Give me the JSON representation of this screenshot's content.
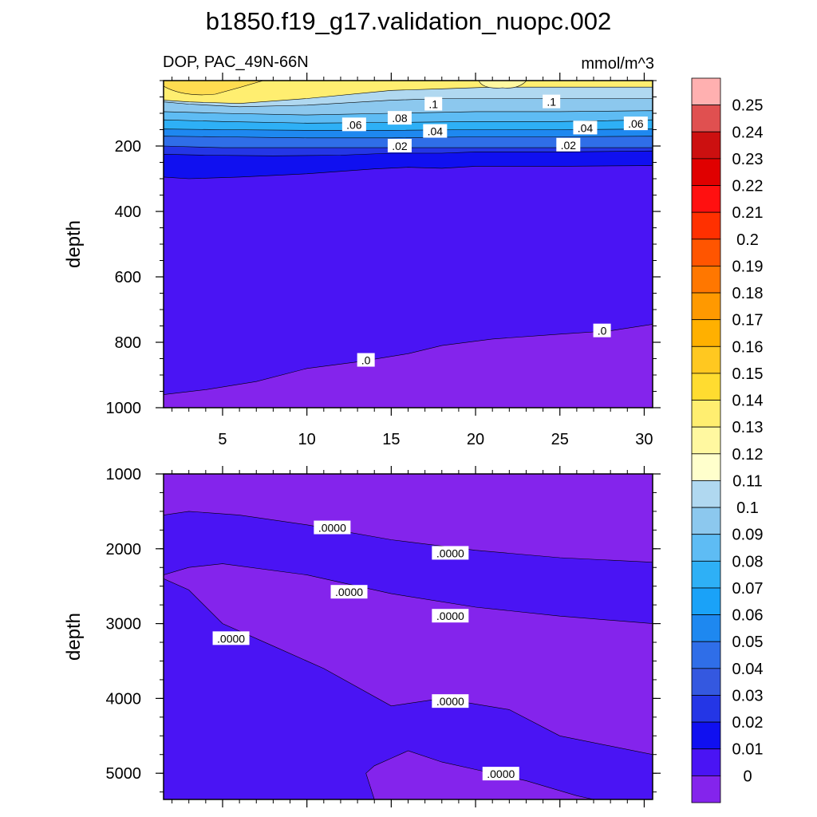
{
  "chart_data": [
    {
      "type": "contour",
      "title": "b1850.f19_g17.validation_nuopc.002",
      "subtitle_left": "DOP, PAC_49N-66N",
      "subtitle_right": "mmol/m^3",
      "xlabel": "",
      "ylabel": "depth",
      "xlim": [
        1.5,
        30.5
      ],
      "ylim": [
        1000,
        0
      ],
      "xticks": [
        5,
        10,
        15,
        20,
        25,
        30
      ],
      "yticks": [
        200,
        400,
        600,
        800,
        1000
      ],
      "contour_labels": [
        {
          "text": ".1",
          "x": 17.5,
          "y": 72
        },
        {
          "text": ".1",
          "x": 24.5,
          "y": 65
        },
        {
          "text": ".08",
          "x": 15.5,
          "y": 115
        },
        {
          "text": ".06",
          "x": 12.8,
          "y": 135
        },
        {
          "text": ".04",
          "x": 17.6,
          "y": 155
        },
        {
          "text": ".04",
          "x": 26.5,
          "y": 145
        },
        {
          "text": ".06",
          "x": 29.5,
          "y": 132
        },
        {
          "text": ".02",
          "x": 15.5,
          "y": 200
        },
        {
          "text": ".02",
          "x": 25.5,
          "y": 197
        },
        {
          "text": ".0",
          "x": 13.5,
          "y": 855
        },
        {
          "text": ".0",
          "x": 27.5,
          "y": 765
        }
      ],
      "level_boundaries": [
        {
          "level": 0.12,
          "points": [
            [
              1.5,
              60
            ],
            [
              3,
              65
            ],
            [
              6,
              70
            ],
            [
              10,
              55
            ],
            [
              15,
              30
            ],
            [
              18,
              25
            ],
            [
              21,
              20
            ],
            [
              24,
              20
            ],
            [
              27,
              20
            ],
            [
              30.5,
              20
            ]
          ]
        },
        {
          "level": 0.1,
          "points": [
            [
              1.5,
              65
            ],
            [
              3,
              72
            ],
            [
              6,
              80
            ],
            [
              10,
              75
            ],
            [
              15,
              60
            ],
            [
              18,
              55
            ],
            [
              21,
              55
            ],
            [
              24,
              55
            ],
            [
              27,
              55
            ],
            [
              30.5,
              55
            ]
          ]
        },
        {
          "level": 0.08,
          "points": [
            [
              1.5,
              95
            ],
            [
              5,
              100
            ],
            [
              10,
              105
            ],
            [
              15,
              100
            ],
            [
              20,
              95
            ],
            [
              25,
              95
            ],
            [
              30.5,
              92
            ]
          ]
        },
        {
          "level": 0.06,
          "points": [
            [
              1.5,
              120
            ],
            [
              5,
              125
            ],
            [
              10,
              130
            ],
            [
              15,
              128
            ],
            [
              20,
              125
            ],
            [
              25,
              125
            ],
            [
              30.5,
              120
            ]
          ]
        },
        {
          "level": 0.04,
          "points": [
            [
              1.5,
              148
            ],
            [
              5,
              150
            ],
            [
              10,
              152
            ],
            [
              15,
              152
            ],
            [
              20,
              150
            ],
            [
              25,
              150
            ],
            [
              30.5,
              148
            ]
          ]
        },
        {
          "level": 0.03,
          "points": [
            [
              1.5,
              170
            ],
            [
              5,
              172
            ],
            [
              10,
              175
            ],
            [
              15,
              175
            ],
            [
              20,
              172
            ],
            [
              25,
              172
            ],
            [
              30.5,
              170
            ]
          ]
        },
        {
          "level": 0.02,
          "points": [
            [
              1.5,
              200
            ],
            [
              5,
              205
            ],
            [
              10,
              205
            ],
            [
              15,
              205
            ],
            [
              20,
              205
            ],
            [
              25,
              205
            ],
            [
              30.5,
              205
            ]
          ]
        },
        {
          "level": 0.01,
          "points": [
            [
              1.5,
              225
            ],
            [
              4,
              228
            ],
            [
              8,
              230
            ],
            [
              12,
              228
            ],
            [
              15,
              222
            ],
            [
              18,
              222
            ],
            [
              20,
              218
            ],
            [
              25,
              218
            ],
            [
              30.5,
              215
            ]
          ]
        },
        {
          "level": 0.0,
          "points": [
            [
              1.5,
              295
            ],
            [
              3,
              300
            ],
            [
              6,
              295
            ],
            [
              10,
              285
            ],
            [
              14,
              270
            ],
            [
              16,
              265
            ],
            [
              18,
              268
            ],
            [
              20,
              262
            ],
            [
              25,
              262
            ],
            [
              30.5,
              260
            ]
          ]
        },
        {
          "level": -0.01,
          "points": [
            [
              1.5,
              960
            ],
            [
              4,
              945
            ],
            [
              7,
              920
            ],
            [
              10,
              880
            ],
            [
              13,
              860
            ],
            [
              16,
              835
            ],
            [
              18,
              810
            ],
            [
              21,
              790
            ],
            [
              25,
              775
            ],
            [
              28,
              765
            ],
            [
              30.5,
              745
            ]
          ]
        }
      ]
    },
    {
      "type": "contour",
      "ylabel": "depth",
      "xlim": [
        1.5,
        30.5
      ],
      "ylim": [
        5350,
        1000
      ],
      "yticks": [
        1000,
        2000,
        3000,
        4000,
        5000
      ],
      "contour_labels": [
        {
          "text": ".0000",
          "x": 11.5,
          "y": 1720
        },
        {
          "text": ".0000",
          "x": 18.5,
          "y": 2060
        },
        {
          "text": ".0000",
          "x": 12.5,
          "y": 2580
        },
        {
          "text": ".0000",
          "x": 18.5,
          "y": 2900
        },
        {
          "text": ".0000",
          "x": 5.5,
          "y": 3200
        },
        {
          "text": ".0000",
          "x": 18.5,
          "y": 4040
        },
        {
          "text": ".0000",
          "x": 21.5,
          "y": 5010
        }
      ],
      "level_boundaries": [
        {
          "level": "band1_top",
          "points": [
            [
              1.5,
              1550
            ],
            [
              3,
              1500
            ],
            [
              6,
              1550
            ],
            [
              10,
              1680
            ],
            [
              15,
              1880
            ],
            [
              20,
              2020
            ],
            [
              25,
              2120
            ],
            [
              30.5,
              2180
            ]
          ]
        },
        {
          "level": "band1_bottom",
          "points": [
            [
              1.5,
              2350
            ],
            [
              3,
              2250
            ],
            [
              5,
              2200
            ],
            [
              10,
              2350
            ],
            [
              15,
              2600
            ],
            [
              20,
              2780
            ],
            [
              25,
              2900
            ],
            [
              30.5,
              3000
            ]
          ]
        },
        {
          "level": "band2_top",
          "points": [
            [
              1.5,
              2400
            ],
            [
              3,
              2550
            ],
            [
              5,
              3000
            ],
            [
              8,
              3300
            ],
            [
              11,
              3600
            ],
            [
              15,
              4100
            ],
            [
              18,
              4000
            ],
            [
              22,
              4150
            ],
            [
              25,
              4500
            ],
            [
              30.5,
              4750
            ]
          ]
        },
        {
          "level": "band3_top",
          "points": [
            [
              14,
              5350
            ],
            [
              13.5,
              5000
            ],
            [
              14,
              4900
            ],
            [
              15,
              4800
            ],
            [
              16,
              4700
            ],
            [
              18,
              4850
            ],
            [
              20,
              4950
            ],
            [
              23,
              5100
            ],
            [
              26,
              5300
            ],
            [
              27,
              5350
            ]
          ]
        }
      ]
    }
  ],
  "colorbar": {
    "labels": [
      "0.25",
      "0.24",
      "0.23",
      "0.22",
      "0.21",
      "0.2",
      "0.19",
      "0.18",
      "0.17",
      "0.16",
      "0.15",
      "0.14",
      "0.13",
      "0.12",
      "0.11",
      "0.1",
      "0.09",
      "0.08",
      "0.07",
      "0.06",
      "0.05",
      "0.04",
      "0.03",
      "0.02",
      "0.01",
      "0"
    ],
    "colors": [
      "#ffb0b0",
      "#e05050",
      "#cc1010",
      "#e00000",
      "#ff1010",
      "#ff3000",
      "#ff5500",
      "#ff7700",
      "#ff9900",
      "#ffb000",
      "#ffc820",
      "#ffdc30",
      "#ffee70",
      "#fff8a0",
      "#ffffcc",
      "#b0d8f0",
      "#8cc8ee",
      "#5ebcf4",
      "#2eb0f6",
      "#1aa2f8",
      "#1e88f0",
      "#2f6ee8",
      "#3458e0",
      "#2436e6",
      "#1010f0",
      "#4a14f4",
      "#8424ec"
    ]
  }
}
